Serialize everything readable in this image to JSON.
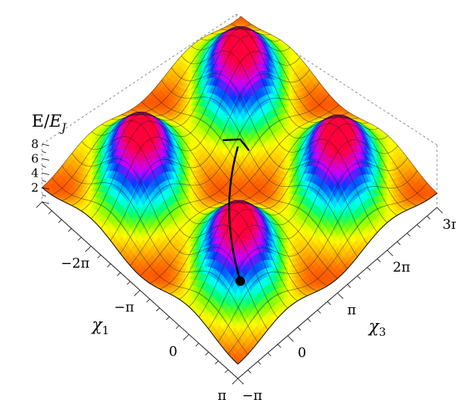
{
  "chart_data": {
    "type": "surface",
    "title": "",
    "zlabel_main": "E/",
    "zlabel_sub": "E",
    "zlabel_subscript": "J",
    "x1_label": "χ",
    "x1_subscript": "1",
    "x3_label": "χ",
    "x3_subscript": "3",
    "x1_ticks": [
      "−2π",
      "−π",
      "0",
      "π"
    ],
    "x3_ticks": [
      "−π",
      "0",
      "π",
      "2π",
      "3π"
    ],
    "z_ticks": [
      "2",
      "4",
      "6",
      "8"
    ],
    "x1_range": [
      "−3π",
      "π"
    ],
    "x3_range": [
      "−π",
      "3π"
    ],
    "z_range": [
      0,
      8
    ],
    "wells": [
      {
        "x1": "−π",
        "x3": "π",
        "energy": "low"
      },
      {
        "x1": "−3π",
        "x3": "3π",
        "energy": "low"
      }
    ],
    "peaks": [
      {
        "x1": "−3π",
        "x3": "π"
      },
      {
        "x1": "−π",
        "x3": "3π"
      },
      {
        "x1": "−π",
        "x3": "−π"
      },
      {
        "x1": "π",
        "x3": "π"
      }
    ],
    "path": {
      "from": "well at (−π, π)",
      "to": "well at (−3π, 3π)",
      "marker": "dot-to-arrow"
    },
    "colormap": [
      "#ff0000",
      "#ffff00",
      "#00ff00",
      "#00ffff",
      "#0000ff",
      "#ff00ff"
    ],
    "box": "dashed"
  }
}
